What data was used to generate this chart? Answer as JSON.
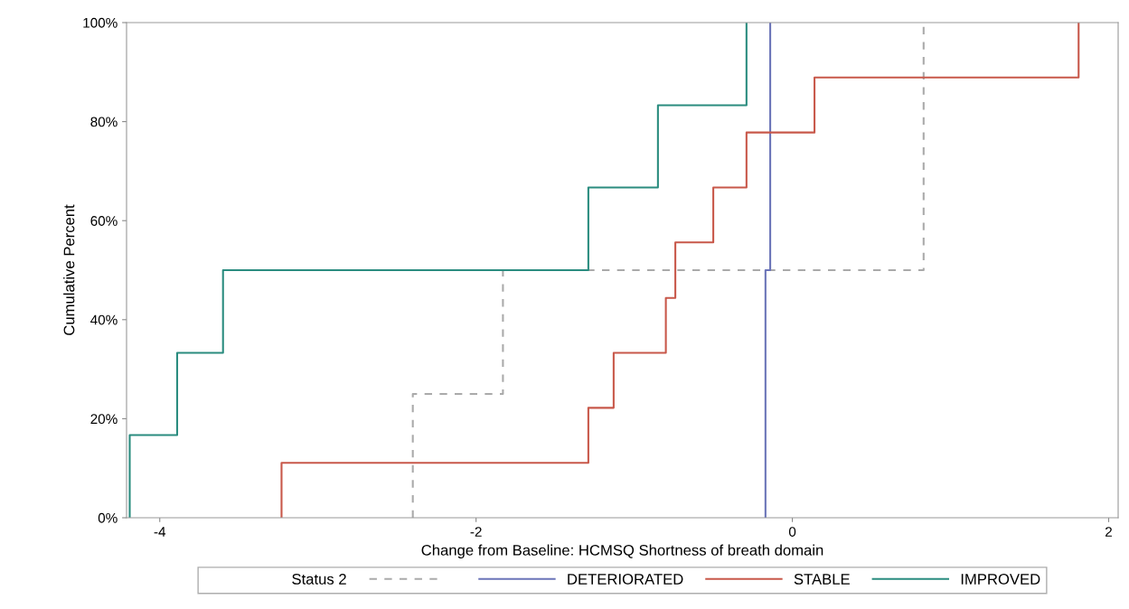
{
  "chart_data": {
    "type": "step",
    "xlabel": "Change from Baseline: HCMSQ Shortness of breath domain",
    "ylabel": "Cumulative Percent",
    "legend_title": "Status 2",
    "legend": "bottom",
    "grid": false,
    "xlim": [
      -4.21,
      2.06
    ],
    "xticks": [
      -4,
      -2,
      0,
      2
    ],
    "ylim": [
      0,
      100
    ],
    "yticks": [
      {
        "value": 0,
        "label": "0%"
      },
      {
        "value": 20,
        "label": "20%"
      },
      {
        "value": 40,
        "label": "40%"
      },
      {
        "value": 60,
        "label": "60%"
      },
      {
        "value": 80,
        "label": "80%"
      },
      {
        "value": 100,
        "label": "100%"
      }
    ],
    "series": [
      {
        "color": "#aaaaaa",
        "line_style": "dashed",
        "x": [
          -2.4,
          -2.4,
          -1.83,
          0.83
        ],
        "values": [
          0,
          25,
          50,
          100
        ]
      },
      {
        "name": "DETERIORATED",
        "color": "#6b74b8",
        "line_style": "solid",
        "x": [
          -0.17,
          -0.17,
          -0.14
        ],
        "values": [
          0,
          50,
          100
        ]
      },
      {
        "name": "STABLE",
        "color": "#c8584a",
        "line_style": "solid",
        "x": [
          -3.23,
          -3.23,
          -1.29,
          -1.13,
          -0.8,
          -0.74,
          -0.5,
          -0.29,
          0.14,
          1.81
        ],
        "values": [
          0,
          11.1,
          22.2,
          33.3,
          44.4,
          55.6,
          66.7,
          77.8,
          88.9,
          100
        ]
      },
      {
        "name": "IMPROVED",
        "color": "#2a8c7f",
        "line_style": "solid",
        "x": [
          -4.19,
          -4.19,
          -3.89,
          -3.6,
          -1.29,
          -0.85,
          -0.29
        ],
        "values": [
          0,
          16.7,
          33.3,
          50,
          66.7,
          83.3,
          100
        ]
      }
    ]
  }
}
